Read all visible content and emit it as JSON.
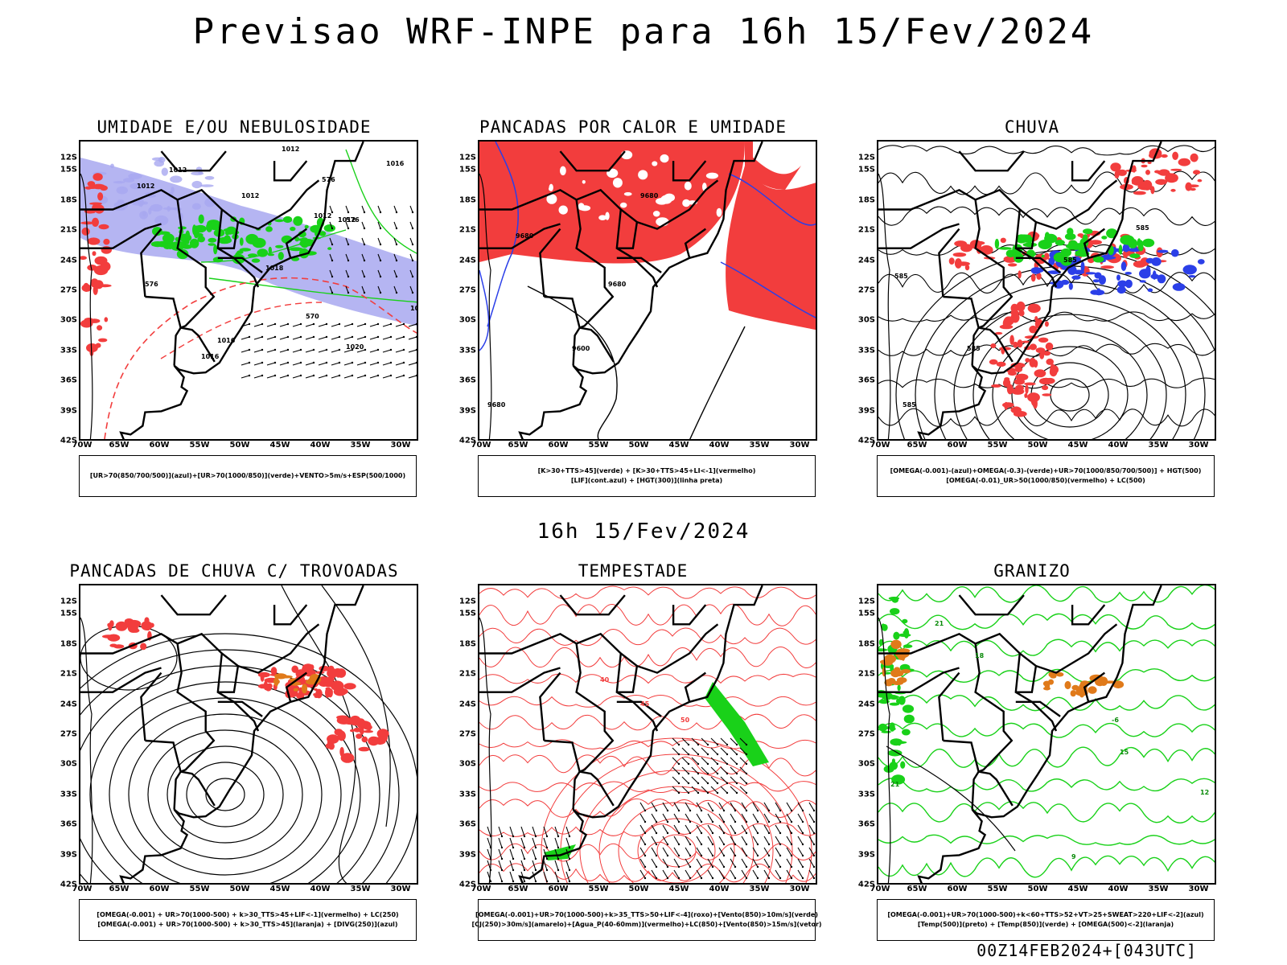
{
  "title": "Previsao WRF-INPE  para 16h 15/Fev/2024",
  "mid_time": "16h 15/Fev/2024",
  "footer": "00Z14FEB2024+[043UTC]",
  "lat_labels": [
    "12S",
    "15S",
    "18S",
    "21S",
    "24S",
    "27S",
    "30S",
    "33S",
    "36S",
    "39S",
    "42S"
  ],
  "lon_labels": [
    "70W",
    "65W",
    "60W",
    "55W",
    "50W",
    "45W",
    "40W",
    "35W",
    "30W"
  ],
  "colors": {
    "red": "#f23d3d",
    "green": "#19d119",
    "blue": "#2b3fe8",
    "lavender": "#a8a8f0",
    "black": "#000000",
    "orange": "#e07a1a"
  },
  "panels": [
    {
      "id": "umidade",
      "title": "UMIDADE E/OU NEBULOSIDADE",
      "legend": [
        "[UR>70(850/700/500)](azul)+[UR>70(1000/850)](verde)+VENTO>5m/s+ESP(500/1000)"
      ],
      "labels": [
        "1012",
        "1012",
        "1012",
        "1012",
        "1012",
        "1012",
        "1016",
        "1016",
        "1020",
        "1016",
        "1012",
        "1018",
        "576",
        "576",
        "576",
        "570"
      ]
    },
    {
      "id": "pancadas",
      "title": "PANCADAS POR CALOR E UMIDADE",
      "legend": [
        "[K>30+TTS>45](verde) + [K>30+TTS>45+LI<-1](vermelho)",
        "[LIF](cont.azul) + [HGT(300)](linha preta)"
      ],
      "labels": [
        "9680",
        "9680",
        "9680",
        "9600",
        "9680"
      ]
    },
    {
      "id": "chuva",
      "title": "CHUVA",
      "legend": [
        "[OMEGA(-0.001)-(azul)+OMEGA(-0.3)-(verde)+UR>70(1000/850/700/500)] + HGT(500)",
        "[OMEGA(-0.01)_UR>50(1000/850)(vermelho) + LC(500)"
      ],
      "labels": [
        "585",
        "585",
        "585",
        "585",
        "585"
      ]
    },
    {
      "id": "trovoadas",
      "title": "PANCADAS DE CHUVA C/ TROVOADAS",
      "legend": [
        "[OMEGA(-0.001) + UR>70(1000-500) + k>30_TTS>45+LIF<-1](vermelho) + LC(250)",
        "[OMEGA(-0.001) + UR>70(1000-500) + k>30_TTS>45](laranja) + [DIVG(250)](azul)"
      ],
      "labels": []
    },
    {
      "id": "tempestade",
      "title": "TEMPESTADE",
      "legend": [
        "[OMEGA(-0.001)+UR>70(1000-500)+k>35_TTS>50+LIF<-4](roxo)+[Vento(850)>10m/s](verde)",
        "[CJ(250)>30m/s](amarelo)+[Agua_P(40-60mm)](vermelho)+LC(850)+[Vento(850)>15m/s](vetor)"
      ],
      "labels": [
        "40",
        "45",
        "50"
      ]
    },
    {
      "id": "granizo",
      "title": "GRANIZO",
      "legend": [
        "[OMEGA(-0.001)+UR>70(1000-500)+k<60+TTS>52+VT>25+SWEAT>220+LIF<-2](azul)",
        "[Temp(500)](preto) + [Temp(850)](verde) + [OMEGA(500)<-2](laranja)"
      ],
      "labels": [
        "21",
        "18",
        "15",
        "12",
        "-6",
        "9",
        "21"
      ]
    }
  ]
}
